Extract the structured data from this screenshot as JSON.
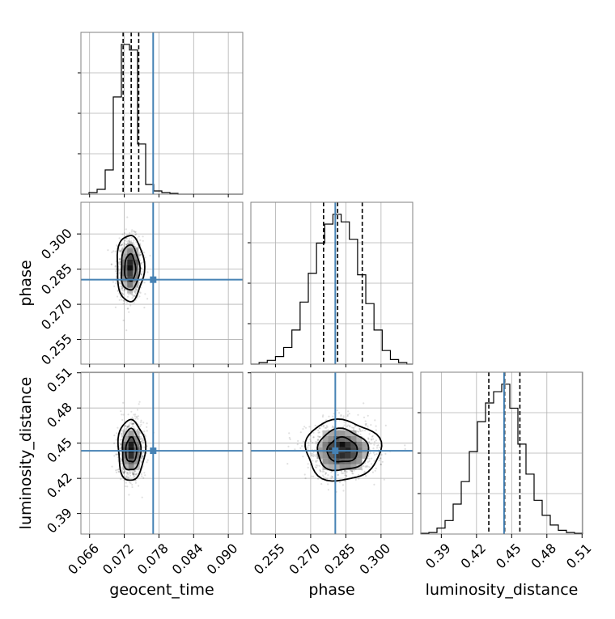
{
  "colors": {
    "truth": "#4682b4",
    "histogram": "#000000",
    "quantile": "#000000",
    "grid": "#b0b0b0",
    "frame": "#808080",
    "background": "#ffffff"
  },
  "chart_data": {
    "type": "corner",
    "grid": true,
    "parameters": [
      {
        "name": "geocent_time",
        "label": "geocent_time",
        "range": [
          0.0645,
          0.0925
        ],
        "ticks": [
          "0.066",
          "0.072",
          "0.078",
          "0.084",
          "0.090"
        ],
        "tick_values": [
          0.066,
          0.072,
          0.078,
          0.084,
          0.09
        ],
        "truth": 0.077,
        "quantiles": [
          0.0718,
          0.0732,
          0.0745
        ],
        "histogram": {
          "bin_edges": [
            0.0645,
            0.0659,
            0.0673,
            0.0687,
            0.0701,
            0.0715,
            0.0729,
            0.0743,
            0.0757,
            0.0771,
            0.0785,
            0.0799,
            0.0813,
            0.0827,
            0.0841,
            0.0855,
            0.0869,
            0.0883,
            0.0897,
            0.0911,
            0.0925
          ],
          "counts": [
            0,
            2,
            6,
            30,
            120,
            185,
            178,
            62,
            12,
            4,
            2,
            1,
            0,
            0,
            0,
            0,
            0,
            0,
            0,
            0
          ]
        }
      },
      {
        "name": "phase",
        "label": "phase",
        "range": [
          0.2445,
          0.3135
        ],
        "ticks": [
          "0.255",
          "0.270",
          "0.285",
          "0.300"
        ],
        "tick_values": [
          0.255,
          0.27,
          0.285,
          0.3
        ],
        "truth": 0.2805,
        "quantiles": [
          0.2755,
          0.2815,
          0.292
        ],
        "histogram": {
          "bin_edges": [
            0.2445,
            0.248,
            0.2515,
            0.255,
            0.2585,
            0.262,
            0.2655,
            0.269,
            0.2725,
            0.276,
            0.2795,
            0.283,
            0.2865,
            0.29,
            0.2935,
            0.297,
            0.3005,
            0.304,
            0.3075,
            0.311,
            0.3135
          ],
          "counts": [
            0,
            2,
            5,
            10,
            22,
            45,
            82,
            120,
            160,
            185,
            198,
            188,
            165,
            118,
            80,
            45,
            18,
            6,
            2,
            0
          ]
        }
      },
      {
        "name": "luminosity_distance",
        "label": "luminosity_distance",
        "range": [
          0.3725,
          0.5105
        ],
        "ticks": [
          "0.39",
          "0.42",
          "0.45",
          "0.48",
          "0.51"
        ],
        "tick_values": [
          0.39,
          0.42,
          0.45,
          0.48,
          0.51
        ],
        "truth": 0.4435,
        "quantiles": [
          0.4305,
          0.444,
          0.457
        ],
        "histogram": {
          "bin_edges": [
            0.3725,
            0.3794,
            0.3863,
            0.3932,
            0.4001,
            0.407,
            0.4139,
            0.4208,
            0.4277,
            0.4346,
            0.4415,
            0.4484,
            0.4553,
            0.4622,
            0.4691,
            0.476,
            0.4829,
            0.4898,
            0.4967,
            0.5036,
            0.5105
          ],
          "counts": [
            1,
            2,
            8,
            18,
            40,
            70,
            110,
            150,
            175,
            190,
            200,
            168,
            120,
            80,
            45,
            25,
            12,
            5,
            2,
            1
          ]
        }
      }
    ],
    "pairs": [
      {
        "x": "geocent_time",
        "y": "phase",
        "center": [
          0.073,
          0.2855
        ],
        "sigma": [
          0.001,
          0.006
        ],
        "truth": [
          0.077,
          0.2805
        ]
      },
      {
        "x": "geocent_time",
        "y": "luminosity_distance",
        "center": [
          0.0732,
          0.444
        ],
        "sigma": [
          0.001,
          0.011
        ],
        "truth": [
          0.077,
          0.4435
        ]
      },
      {
        "x": "phase",
        "y": "luminosity_distance",
        "center": [
          0.2835,
          0.444
        ],
        "sigma": [
          0.0068,
          0.011
        ],
        "truth": [
          0.2805,
          0.4435
        ]
      }
    ]
  }
}
